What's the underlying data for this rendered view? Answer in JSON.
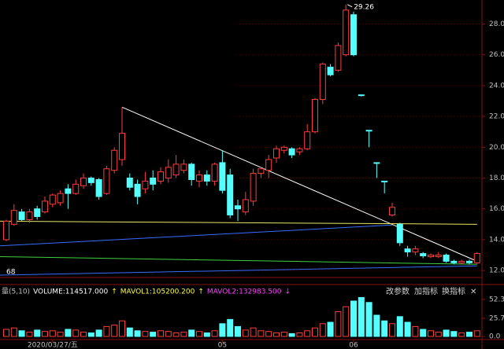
{
  "chart_data": {
    "type": "candlestick",
    "categories": [
      null,
      null,
      null,
      null,
      null,
      null,
      "2020/03/27/五",
      null,
      null,
      null,
      null,
      null,
      null,
      null,
      null,
      null,
      null,
      null,
      null,
      null,
      null,
      null,
      null,
      null,
      null,
      null,
      null,
      null,
      "05",
      null,
      null,
      null,
      null,
      null,
      null,
      null,
      null,
      null,
      null,
      null,
      null,
      null,
      null,
      null,
      null,
      "06",
      null,
      null,
      null,
      null,
      null,
      null,
      null,
      null,
      null,
      null,
      null,
      null,
      null,
      null,
      null,
      null
    ],
    "open": [
      14.0,
      15.0,
      15.8,
      15.3,
      16.0,
      15.8,
      16.3,
      16.4,
      17.3,
      17.0,
      17.5,
      18.0,
      17.9,
      17.0,
      18.5,
      19.2,
      18.0,
      17.6,
      17.3,
      18.0,
      17.8,
      18.0,
      18.2,
      18.5,
      18.9,
      17.8,
      18.2,
      17.8,
      19.0,
      18.2,
      16.2,
      15.8,
      16.5,
      18.3,
      18.5,
      19.3,
      19.8,
      19.9,
      19.7,
      19.9,
      21.0,
      23.1,
      25.2,
      25.0,
      26.0,
      28.6,
      23.4,
      21.1,
      19.0,
      17.8,
      15.6,
      15.0,
      13.4,
      13.2,
      13.1,
      12.9,
      12.9,
      13.0,
      12.6,
      12.5,
      12.6,
      12.5
    ],
    "high": [
      15.3,
      16.3,
      16.0,
      16.0,
      16.2,
      16.8,
      17.0,
      17.2,
      17.6,
      17.9,
      18.3,
      18.1,
      18.0,
      18.8,
      20.0,
      22.6,
      18.3,
      17.9,
      18.4,
      18.5,
      18.7,
      19.2,
      19.5,
      19.2,
      19.0,
      18.5,
      18.5,
      19.0,
      19.8,
      18.6,
      16.6,
      17.1,
      18.6,
      18.7,
      19.5,
      20.1,
      20.1,
      20.0,
      20.0,
      21.5,
      23.2,
      25.5,
      25.4,
      26.8,
      29.26,
      28.8,
      23.4,
      21.1,
      19.0,
      17.8,
      16.4,
      15.1,
      13.6,
      13.6,
      13.2,
      13.1,
      13.2,
      13.1,
      12.7,
      12.7,
      12.7,
      13.2
    ],
    "low": [
      13.9,
      14.9,
      15.2,
      15.1,
      15.3,
      15.7,
      16.1,
      16.2,
      16.0,
      16.9,
      17.3,
      17.5,
      16.6,
      16.9,
      18.3,
      18.8,
      17.2,
      16.3,
      17.0,
      17.2,
      17.6,
      17.7,
      18.0,
      18.3,
      17.5,
      17.4,
      17.5,
      17.5,
      17.0,
      15.4,
      15.2,
      15.6,
      16.2,
      18.0,
      18.0,
      19.0,
      19.6,
      19.3,
      19.5,
      19.8,
      20.9,
      22.8,
      24.6,
      24.9,
      25.9,
      25.9,
      23.3,
      20.0,
      18.0,
      17.0,
      15.5,
      13.6,
      12.9,
      13.0,
      12.8,
      12.8,
      12.8,
      12.5,
      12.4,
      12.4,
      12.4,
      12.4
    ],
    "close": [
      15.2,
      15.9,
      15.3,
      15.8,
      15.5,
      16.5,
      16.9,
      17.0,
      17.0,
      17.6,
      18.0,
      17.7,
      16.8,
      18.6,
      19.8,
      20.9,
      17.4,
      16.8,
      17.8,
      17.6,
      18.4,
      18.7,
      18.9,
      18.9,
      17.9,
      18.2,
      17.8,
      18.9,
      17.2,
      15.6,
      16.0,
      16.6,
      18.3,
      18.6,
      19.2,
      19.9,
      20.0,
      19.5,
      19.9,
      21.0,
      23.1,
      25.4,
      24.7,
      26.6,
      28.9,
      26.0,
      23.35,
      21.05,
      18.95,
      17.75,
      16.1,
      13.8,
      13.2,
      13.4,
      12.95,
      13.0,
      13.0,
      12.6,
      12.5,
      12.6,
      12.5,
      13.1
    ],
    "volume": [
      10,
      12,
      8,
      6,
      9,
      7,
      8,
      6,
      10,
      9,
      6,
      5,
      9,
      14,
      16,
      22,
      12,
      8,
      7,
      6,
      8,
      7,
      5,
      6,
      9,
      7,
      5,
      8,
      18,
      24,
      14,
      9,
      12,
      8,
      7,
      5,
      6,
      4,
      5,
      8,
      12,
      18,
      20,
      35,
      42,
      50,
      55,
      48,
      30,
      22,
      18,
      28,
      20,
      14,
      10,
      8,
      6,
      9,
      7,
      5,
      6,
      8
    ],
    "up_color": "#ff3c3c",
    "down_color": "#54ffff",
    "ylim": [
      11.7,
      29.3
    ],
    "yticks": [
      {
        "value": 12,
        "label": "12.00"
      },
      {
        "value": 14,
        "label": "14.00"
      },
      {
        "value": 16,
        "label": "16.00"
      },
      {
        "value": 18,
        "label": "18.00"
      },
      {
        "value": 20,
        "label": "20.00"
      },
      {
        "value": 22,
        "label": "22.00"
      },
      {
        "value": 24,
        "label": "24.00"
      },
      {
        "value": 26,
        "label": "26.00"
      },
      {
        "value": 28,
        "label": "28.00"
      }
    ],
    "vol_ylim": [
      0,
      62.2
    ],
    "vol_yticks": [
      {
        "value": 0,
        "label": "0.0"
      },
      25.7,
      52.3
    ],
    "lines": [
      {
        "color": "#ffffff",
        "x": [
          15,
          61
        ],
        "y": [
          22.6,
          12.6
        ]
      },
      {
        "color": "#e8e860",
        "x": [
          0,
          61
        ],
        "y": [
          15.2,
          15.0
        ]
      },
      {
        "color": "#3a6cff",
        "x": [
          0,
          50
        ],
        "y": [
          13.6,
          14.95
        ]
      },
      {
        "color": "#40d040",
        "x": [
          0,
          61
        ],
        "y": [
          12.9,
          12.4
        ]
      },
      {
        "color": "#3a6cff",
        "x": [
          0,
          61
        ],
        "y": [
          11.7,
          12.3
        ]
      }
    ],
    "peak_label": "29.26",
    "low_label": "68",
    "vol_header": [
      {
        "text": "量(5,10)",
        "color": "#c0c0c0"
      },
      {
        "text": "VOLUME:114517.000",
        "color": "#ffffff"
      },
      {
        "text": "↑",
        "color": "#ffff40"
      },
      {
        "text": "MAVOL1:105200.200",
        "color": "#ffff40"
      },
      {
        "text": "↑",
        "color": "#ffff40"
      },
      {
        "text": "MAVOL2:132983.500",
        "color": "#ff40ff"
      },
      {
        "text": "↓",
        "color": "#ff40ff"
      }
    ],
    "buttons": [
      "改参数",
      "加指标",
      "换指标",
      "✕"
    ]
  }
}
